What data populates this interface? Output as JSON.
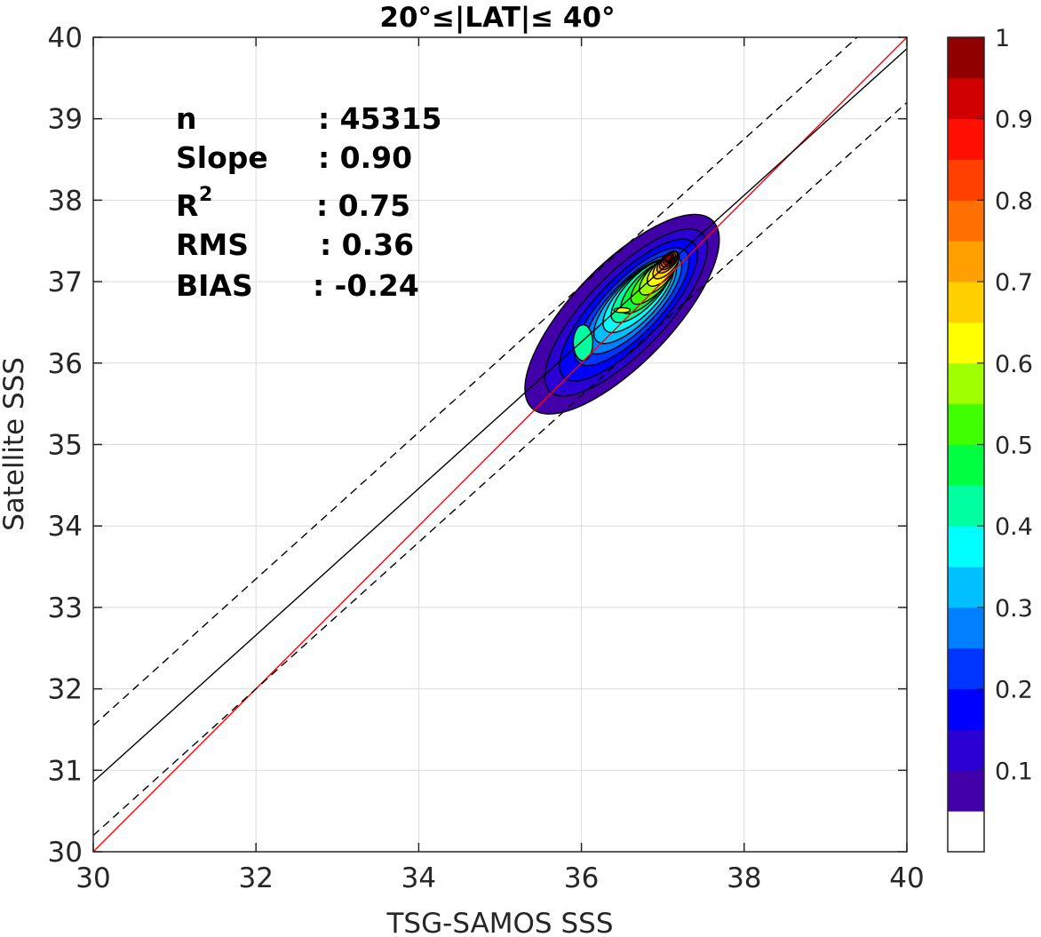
{
  "chart_data": {
    "type": "heatmap",
    "title": "20°≤|LAT|≤ 40°",
    "xlabel": "TSG-SAMOS SSS",
    "ylabel": "Satellite SSS",
    "xlim": [
      30,
      40
    ],
    "ylim": [
      30,
      40
    ],
    "x_ticks": [
      "30",
      "32",
      "34",
      "36",
      "38",
      "40"
    ],
    "y_ticks": [
      "30",
      "31",
      "32",
      "33",
      "34",
      "35",
      "36",
      "37",
      "38",
      "39",
      "40"
    ],
    "grid": true,
    "stats": [
      {
        "label": "n",
        "value": ": 45315"
      },
      {
        "label": "Slope",
        "value": ": 0.90"
      },
      {
        "label": "R",
        "sup": "2",
        "value": ": 0.75"
      },
      {
        "label": "RMS",
        "value": ": 0.36"
      },
      {
        "label": "BIAS",
        "value": ": -0.24"
      }
    ],
    "lines": {
      "one_to_one": {
        "slope": 1,
        "intercept": 0,
        "color": "#ff0000"
      },
      "fit": {
        "slope": 0.9,
        "intercept": 3.86,
        "color": "#000000"
      },
      "fit_upper": {
        "slope": 0.9,
        "intercept": 4.55,
        "color": "#000000",
        "dash": true
      },
      "fit_lower": {
        "slope": 0.9,
        "intercept": 3.2,
        "color": "#000000",
        "dash": true
      }
    },
    "density": {
      "center": [
        36.5,
        36.6
      ],
      "angle_deg": 46,
      "levels": [
        {
          "level": 0.05,
          "a": 1.6,
          "b": 0.38,
          "dx": 0.0,
          "dy": 0.0,
          "color": "#4200a8"
        },
        {
          "level": 0.1,
          "a": 1.35,
          "b": 0.3,
          "dx": 0.05,
          "dy": 0.02,
          "color": "#2a00d4"
        },
        {
          "level": 0.15,
          "a": 1.15,
          "b": 0.25,
          "dx": 0.08,
          "dy": 0.05,
          "color": "#0000ff"
        },
        {
          "level": 0.2,
          "a": 0.95,
          "b": 0.21,
          "dx": 0.12,
          "dy": 0.09,
          "color": "#0035ff"
        },
        {
          "level": 0.25,
          "a": 0.8,
          "b": 0.18,
          "dx": 0.14,
          "dy": 0.12,
          "color": "#0080ff"
        },
        {
          "level": 0.3,
          "a": 0.68,
          "b": 0.16,
          "dx": 0.16,
          "dy": 0.16,
          "color": "#00c0ff"
        },
        {
          "level": 0.35,
          "a": 0.58,
          "b": 0.14,
          "dx": 0.2,
          "dy": 0.22,
          "color": "#00ffff"
        },
        {
          "level": 0.4,
          "a": 0.5,
          "b": 0.12,
          "dx": 0.24,
          "dy": 0.28,
          "color": "#00ffa0"
        },
        {
          "level": 0.45,
          "a": 0.42,
          "b": 0.1,
          "dx": 0.3,
          "dy": 0.33,
          "color": "#00ff40"
        },
        {
          "level": 0.5,
          "a": 0.36,
          "b": 0.09,
          "dx": 0.38,
          "dy": 0.4,
          "color": "#40ff00"
        },
        {
          "level": 0.55,
          "a": 0.3,
          "b": 0.08,
          "dx": 0.44,
          "dy": 0.47,
          "color": "#a0ff00"
        },
        {
          "level": 0.6,
          "a": 0.25,
          "b": 0.07,
          "dx": 0.5,
          "dy": 0.54,
          "color": "#ffff00"
        },
        {
          "level": 0.65,
          "a": 0.21,
          "b": 0.06,
          "dx": 0.54,
          "dy": 0.6,
          "color": "#ffd000"
        },
        {
          "level": 0.7,
          "a": 0.17,
          "b": 0.05,
          "dx": 0.56,
          "dy": 0.64,
          "color": "#ffa000"
        },
        {
          "level": 0.75,
          "a": 0.14,
          "b": 0.045,
          "dx": 0.57,
          "dy": 0.66,
          "color": "#ff7000"
        },
        {
          "level": 0.8,
          "a": 0.11,
          "b": 0.04,
          "dx": 0.57,
          "dy": 0.67,
          "color": "#ff4000"
        },
        {
          "level": 0.85,
          "a": 0.08,
          "b": 0.035,
          "dx": 0.57,
          "dy": 0.68,
          "color": "#ff1000"
        },
        {
          "level": 0.9,
          "a": 0.06,
          "b": 0.03,
          "dx": 0.57,
          "dy": 0.69,
          "color": "#d00000"
        },
        {
          "level": 0.95,
          "a": 0.04,
          "b": 0.02,
          "dx": 0.57,
          "dy": 0.69,
          "color": "#900000"
        }
      ],
      "secondary_blobs": [
        {
          "x": 36.02,
          "y": 36.25,
          "a": 0.12,
          "b": 0.22,
          "color": "#00ffa0"
        },
        {
          "x": 36.5,
          "y": 36.65,
          "a": 0.1,
          "b": 0.03,
          "color": "#ffff00"
        }
      ]
    },
    "colorbar": {
      "colors": [
        "#ffffff",
        "#4200a8",
        "#2a00d4",
        "#0000ff",
        "#0035ff",
        "#0080ff",
        "#00c0ff",
        "#00ffff",
        "#00ffa0",
        "#00ff40",
        "#40ff00",
        "#a0ff00",
        "#ffff00",
        "#ffd000",
        "#ffa000",
        "#ff7000",
        "#ff4000",
        "#ff1000",
        "#d00000",
        "#900000"
      ],
      "ticks": [
        "0.1",
        "0.2",
        "0.3",
        "0.4",
        "0.5",
        "0.6",
        "0.7",
        "0.8",
        "0.9",
        "1"
      ],
      "tick_values": [
        0.1,
        0.2,
        0.3,
        0.4,
        0.5,
        0.6,
        0.7,
        0.8,
        0.9,
        1.0
      ]
    }
  }
}
